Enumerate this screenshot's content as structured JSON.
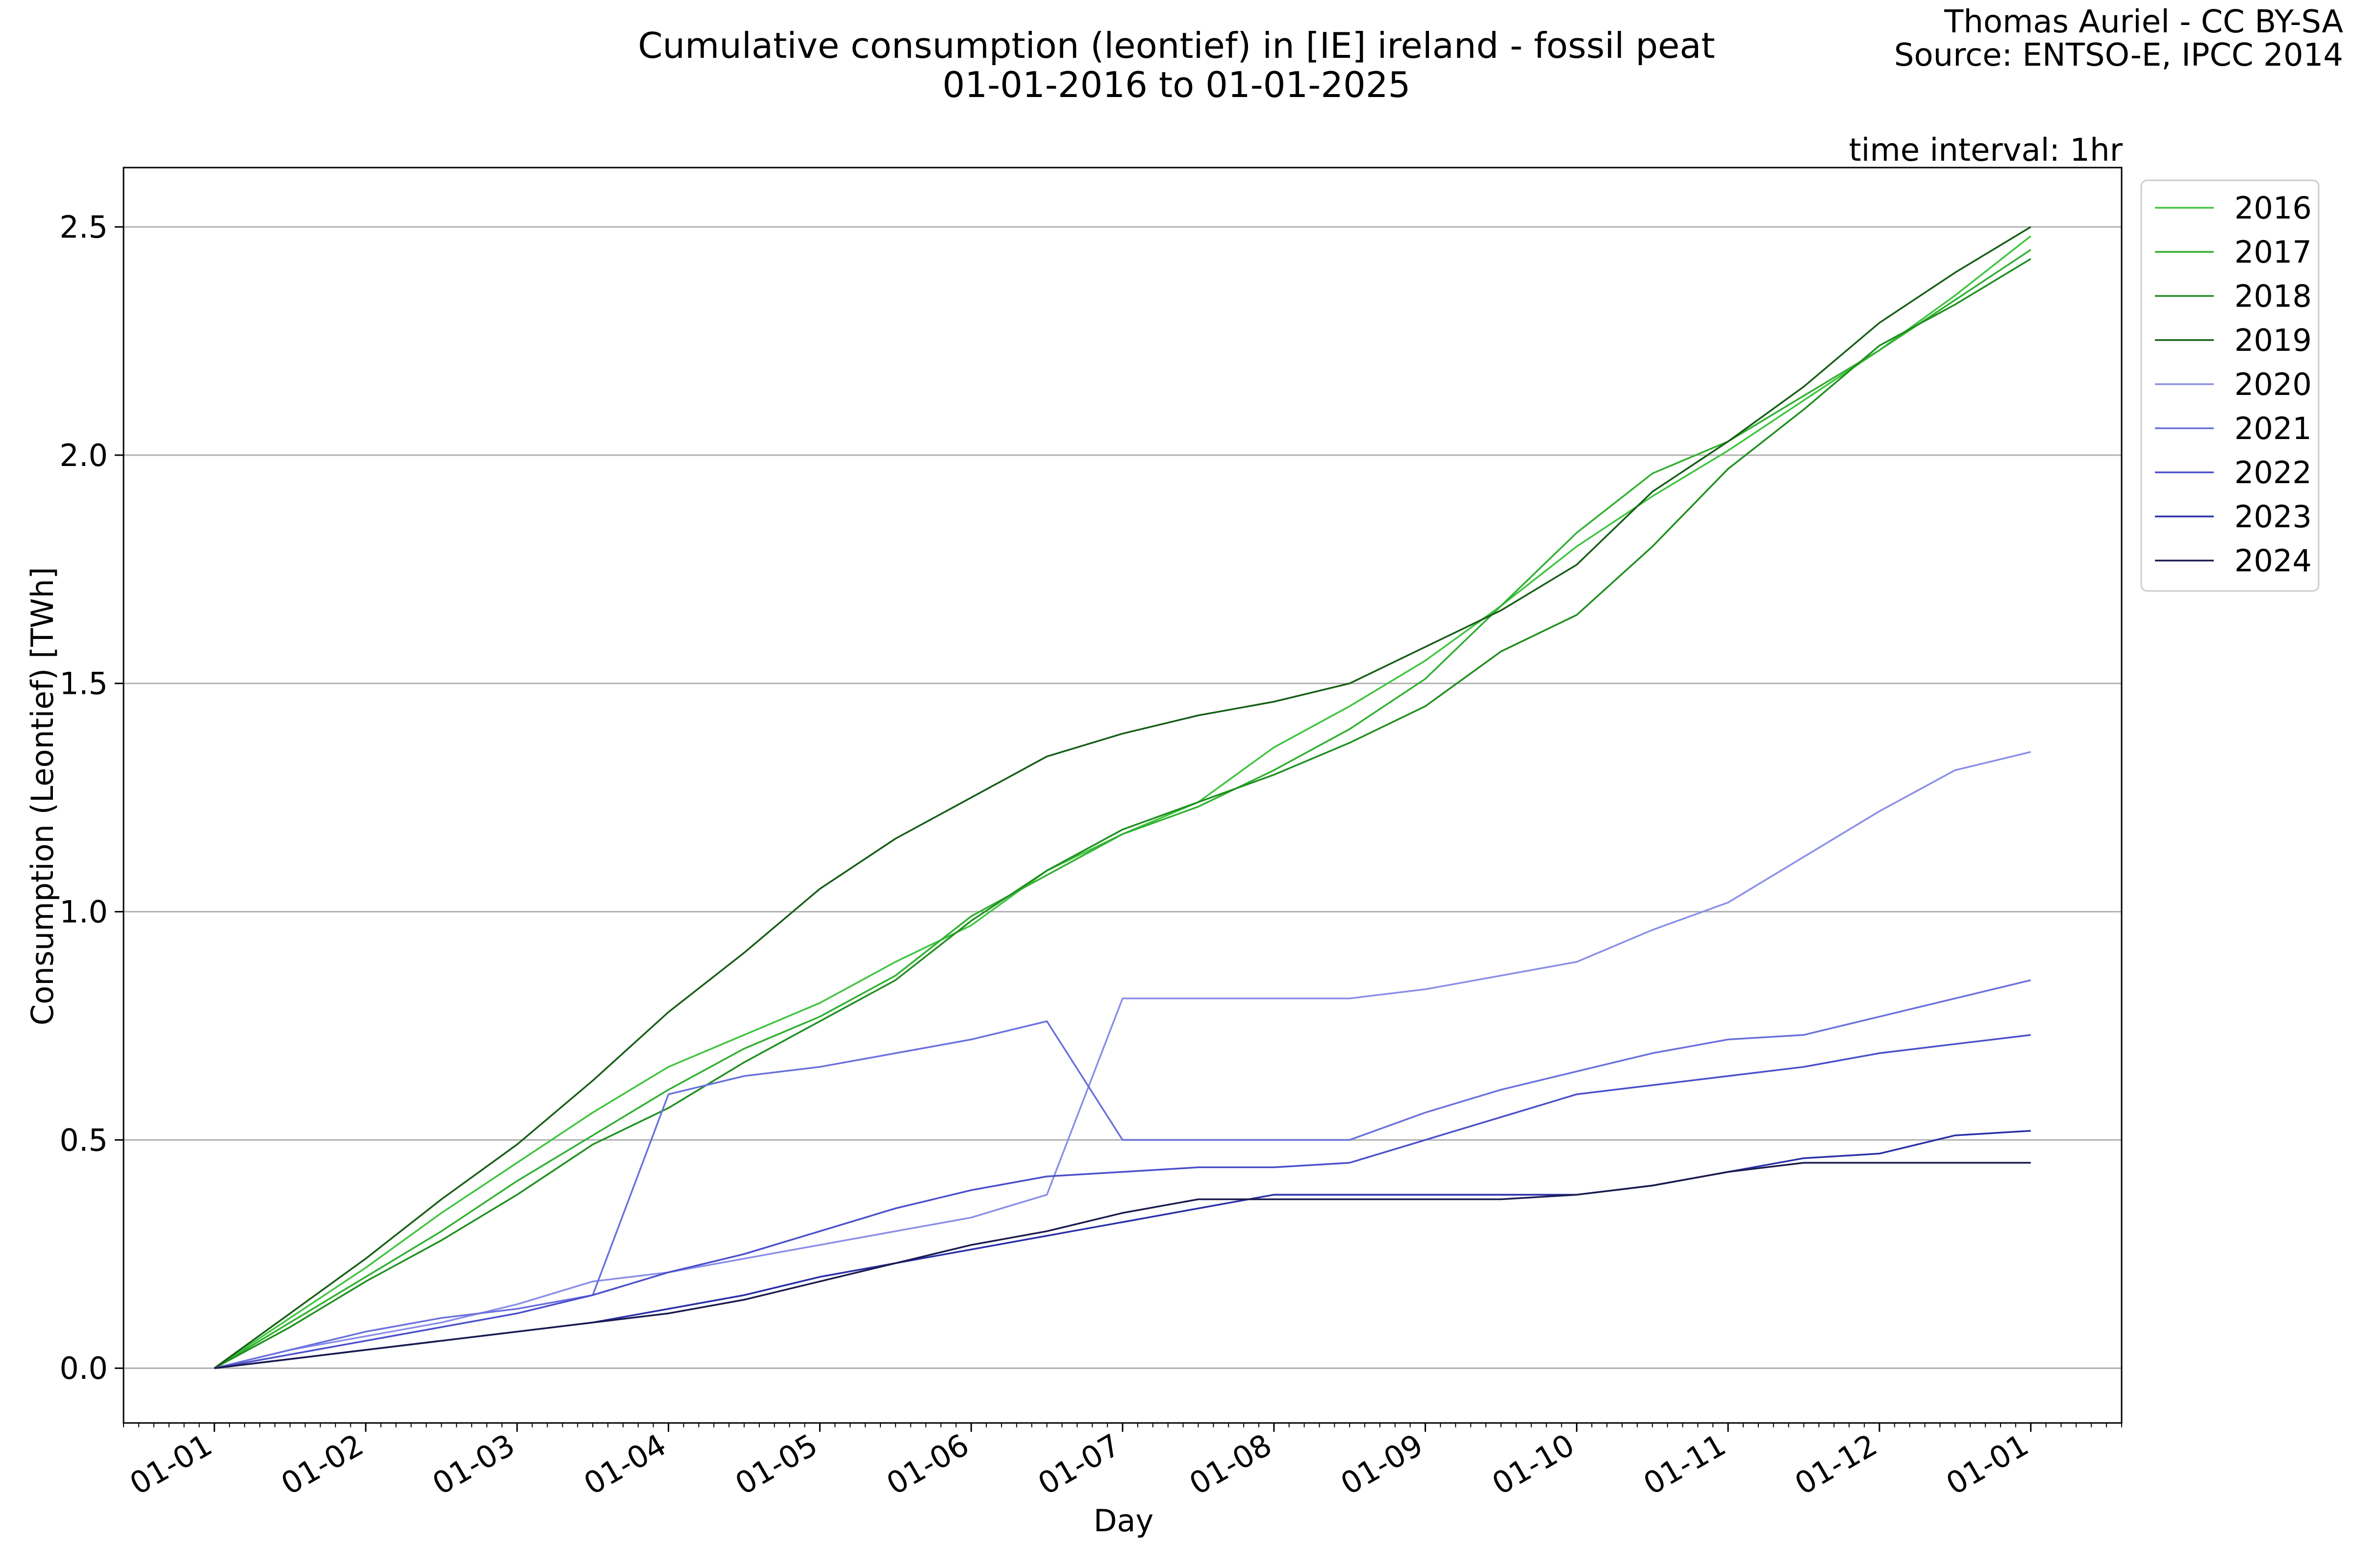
{
  "header": {
    "title_line1": "Cumulative consumption (leontief) in [IE] ireland - fossil peat",
    "title_line2": "01-01-2016 to 01-01-2025",
    "credit_line1": "Thomas Auriel - CC BY-SA",
    "credit_line2": "Source: ENTSO-E, IPCC 2014",
    "interval_note": "time interval: 1hr"
  },
  "chart_data": {
    "type": "line",
    "xlabel": "Day",
    "ylabel": "Consumption (Leontief) [TWh]",
    "xlim": [
      -0.6,
      12.6
    ],
    "ylim": [
      -0.12,
      2.63
    ],
    "x_ticks": [
      {
        "value": 0,
        "label": "01-01"
      },
      {
        "value": 1,
        "label": "01-02"
      },
      {
        "value": 2,
        "label": "01-03"
      },
      {
        "value": 3,
        "label": "01-04"
      },
      {
        "value": 4,
        "label": "01-05"
      },
      {
        "value": 5,
        "label": "01-06"
      },
      {
        "value": 6,
        "label": "01-07"
      },
      {
        "value": 7,
        "label": "01-08"
      },
      {
        "value": 8,
        "label": "01-09"
      },
      {
        "value": 9,
        "label": "01-10"
      },
      {
        "value": 10,
        "label": "01-11"
      },
      {
        "value": 11,
        "label": "01-12"
      },
      {
        "value": 12,
        "label": "01-01"
      }
    ],
    "y_ticks": [
      {
        "value": 0.0,
        "label": "0.0"
      },
      {
        "value": 0.5,
        "label": "0.5"
      },
      {
        "value": 1.0,
        "label": "1.0"
      },
      {
        "value": 1.5,
        "label": "1.5"
      },
      {
        "value": 2.0,
        "label": "2.0"
      },
      {
        "value": 2.5,
        "label": "2.5"
      }
    ],
    "grid": "horizontal",
    "legend_position": "outside-right-top",
    "x": [
      0,
      0.5,
      1,
      1.5,
      2,
      2.5,
      3,
      3.5,
      4,
      4.5,
      5,
      5.5,
      6,
      6.5,
      7,
      7.5,
      8,
      8.5,
      9,
      9.5,
      10,
      10.5,
      11,
      11.5,
      12
    ],
    "series": [
      {
        "name": "2016",
        "color": "#3fc43f",
        "values": [
          0,
          0.11,
          0.22,
          0.34,
          0.45,
          0.56,
          0.66,
          0.73,
          0.8,
          0.89,
          0.97,
          1.09,
          1.17,
          1.24,
          1.36,
          1.45,
          1.55,
          1.67,
          1.8,
          1.91,
          2.01,
          2.12,
          2.23,
          2.35,
          2.48
        ]
      },
      {
        "name": "2017",
        "color": "#30b030",
        "values": [
          0,
          0.1,
          0.2,
          0.3,
          0.41,
          0.51,
          0.61,
          0.7,
          0.77,
          0.86,
          0.99,
          1.08,
          1.17,
          1.23,
          1.31,
          1.4,
          1.51,
          1.67,
          1.83,
          1.96,
          2.03,
          2.13,
          2.23,
          2.34,
          2.45
        ]
      },
      {
        "name": "2018",
        "color": "#1e8f1e",
        "values": [
          0,
          0.09,
          0.19,
          0.28,
          0.38,
          0.49,
          0.57,
          0.67,
          0.76,
          0.85,
          0.98,
          1.09,
          1.18,
          1.24,
          1.3,
          1.37,
          1.45,
          1.57,
          1.65,
          1.8,
          1.97,
          2.1,
          2.24,
          2.33,
          2.43
        ]
      },
      {
        "name": "2019",
        "color": "#155e15",
        "values": [
          0,
          0.12,
          0.24,
          0.37,
          0.49,
          0.63,
          0.78,
          0.91,
          1.05,
          1.16,
          1.25,
          1.34,
          1.39,
          1.43,
          1.46,
          1.5,
          1.58,
          1.66,
          1.76,
          1.92,
          2.03,
          2.15,
          2.29,
          2.4,
          2.5
        ]
      },
      {
        "name": "2020",
        "color": "#8a8ee8",
        "values": [
          0,
          0.04,
          0.07,
          0.1,
          0.14,
          0.19,
          0.21,
          0.24,
          0.27,
          0.3,
          0.33,
          0.38,
          0.81,
          0.81,
          0.81,
          0.81,
          0.83,
          0.86,
          0.89,
          0.96,
          1.02,
          1.12,
          1.22,
          1.31,
          1.35
        ]
      },
      {
        "name": "2021",
        "color": "#6a70dc",
        "values": [
          0,
          0.04,
          0.08,
          0.11,
          0.13,
          0.16,
          0.6,
          0.64,
          0.66,
          0.69,
          0.72,
          0.76,
          0.5,
          0.5,
          0.5,
          0.5,
          0.56,
          0.61,
          0.65,
          0.69,
          0.72,
          0.73,
          0.77,
          0.81,
          0.85
        ]
      },
      {
        "name": "2022",
        "color": "#4a4fcb",
        "values": [
          0,
          0.03,
          0.06,
          0.09,
          0.12,
          0.16,
          0.21,
          0.25,
          0.3,
          0.35,
          0.39,
          0.42,
          0.43,
          0.44,
          0.44,
          0.45,
          0.5,
          0.55,
          0.6,
          0.62,
          0.64,
          0.66,
          0.69,
          0.71,
          0.73
        ]
      },
      {
        "name": "2023",
        "color": "#2a2fa8",
        "values": [
          0,
          0.02,
          0.04,
          0.06,
          0.08,
          0.1,
          0.13,
          0.16,
          0.2,
          0.23,
          0.26,
          0.29,
          0.32,
          0.35,
          0.38,
          0.38,
          0.38,
          0.38,
          0.38,
          0.4,
          0.43,
          0.46,
          0.47,
          0.51,
          0.52
        ]
      },
      {
        "name": "2024",
        "color": "#1a1a4e",
        "values": [
          0,
          0.02,
          0.04,
          0.06,
          0.08,
          0.1,
          0.12,
          0.15,
          0.19,
          0.23,
          0.27,
          0.3,
          0.34,
          0.37,
          0.37,
          0.37,
          0.37,
          0.37,
          0.38,
          0.4,
          0.43,
          0.45,
          0.45,
          0.45,
          0.45
        ]
      }
    ]
  }
}
